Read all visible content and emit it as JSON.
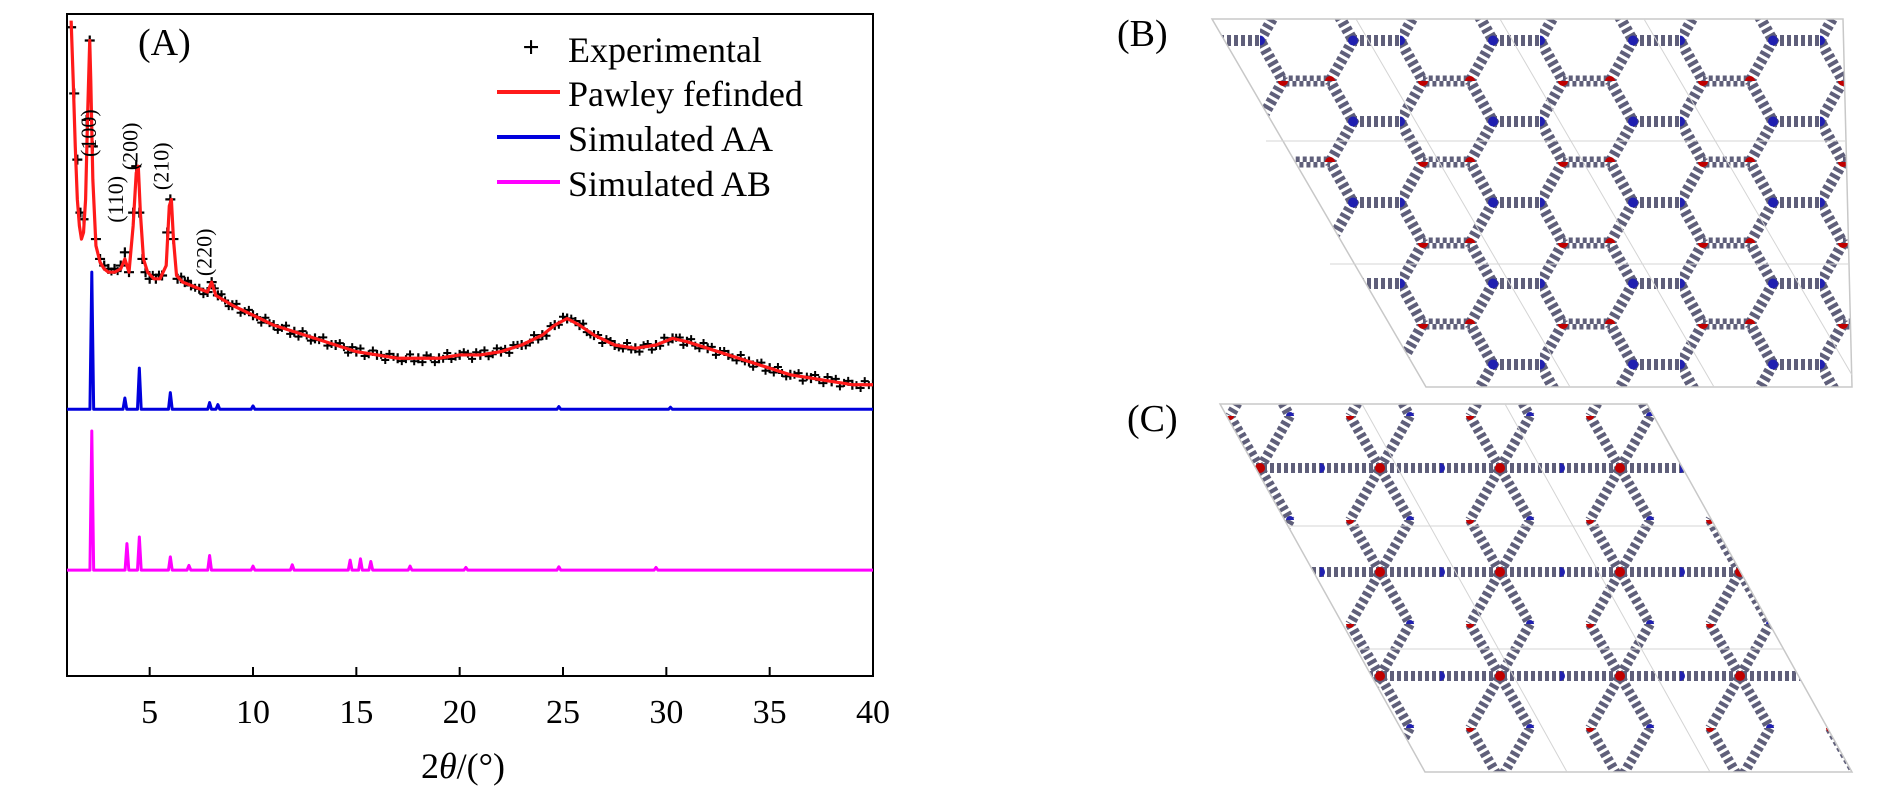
{
  "panels": {
    "a_label": "(A)",
    "b_label": "(B)",
    "c_label": "(C)"
  },
  "chart_data": {
    "type": "line",
    "title": "",
    "xlabel_prefix": "2",
    "xlabel_theta": "θ",
    "xlabel_suffix": "/(°)",
    "ylabel": "",
    "xlim": [
      1,
      40
    ],
    "ylim": [
      0,
      100
    ],
    "xticks": [
      5,
      10,
      15,
      20,
      25,
      30,
      35,
      40
    ],
    "xtick_labels": [
      "5",
      "10",
      "15",
      "20",
      "25",
      "30",
      "35",
      "40"
    ],
    "legend": [
      {
        "label": "Experimental",
        "marker": "+",
        "color": "#000000"
      },
      {
        "label": "Pawley fefinded",
        "color": "#ff1a1a"
      },
      {
        "label": "Simulated AA",
        "color": "#0000dd"
      },
      {
        "label": "Simulated AB",
        "color": "#ff00ff"
      }
    ],
    "peak_labels": [
      {
        "text": "(100)",
        "x": 2.4,
        "y": 82
      },
      {
        "text": "(110)",
        "x": 3.7,
        "y": 72
      },
      {
        "text": "(200)",
        "x": 4.4,
        "y": 80
      },
      {
        "text": "(210)",
        "x": 5.9,
        "y": 77
      },
      {
        "text": "(220)",
        "x": 8.0,
        "y": 64
      }
    ],
    "series": [
      {
        "name": "Experimental",
        "type": "scatter",
        "color": "#000000",
        "x": [
          1.2,
          1.35,
          1.5,
          1.65,
          1.8,
          1.95,
          2.1,
          2.25,
          2.4,
          2.6,
          2.8,
          3.0,
          3.3,
          3.6,
          3.8,
          4.0,
          4.2,
          4.35,
          4.5,
          4.65,
          4.8,
          5.0,
          5.3,
          5.6,
          5.85,
          6.0,
          6.15,
          6.35,
          6.7,
          7.0,
          7.4,
          7.8,
          8.0,
          8.3,
          9,
          10,
          11,
          12,
          13,
          14,
          15,
          16,
          17,
          18,
          19,
          20,
          21,
          22,
          23,
          24,
          24.6,
          25.2,
          25.8,
          26.5,
          27.5,
          28.5,
          29.5,
          30.3,
          31.0,
          32,
          33,
          34,
          35,
          36,
          37,
          38,
          39,
          40
        ],
        "y": [
          98,
          88,
          78,
          70,
          69,
          84,
          96,
          80,
          66,
          63,
          62,
          61.5,
          61.5,
          62,
          64,
          61,
          70,
          77,
          70,
          63,
          61,
          60,
          60,
          60.5,
          67,
          72,
          66,
          60,
          59.5,
          59,
          58.5,
          58,
          59.5,
          57.5,
          56,
          54.5,
          53,
          52,
          51,
          50,
          49,
          48.5,
          48,
          48,
          48,
          48.5,
          48.5,
          49,
          50,
          51.5,
          53,
          54,
          53,
          51.5,
          50,
          49.5,
          50,
          51,
          50.5,
          49.5,
          48.5,
          47.5,
          46.5,
          45.5,
          45,
          44.5,
          44,
          44
        ]
      },
      {
        "name": "Pawley fefinded",
        "type": "line",
        "color": "#ff1a1a",
        "x": [
          1.2,
          1.3,
          1.4,
          1.5,
          1.6,
          1.7,
          1.8,
          1.9,
          2.0,
          2.1,
          2.15,
          2.25,
          2.4,
          2.6,
          2.8,
          3.0,
          3.3,
          3.6,
          3.8,
          4.0,
          4.2,
          4.35,
          4.45,
          4.55,
          4.7,
          4.9,
          5.2,
          5.5,
          5.8,
          5.95,
          6.05,
          6.15,
          6.3,
          6.6,
          7.0,
          7.4,
          7.8,
          8.0,
          8.2,
          9,
          10,
          11,
          12,
          13,
          14,
          15,
          16,
          17,
          18,
          19,
          20,
          21,
          22,
          23,
          24,
          24.6,
          25.2,
          25.8,
          26.5,
          27.5,
          28.5,
          29.5,
          30.3,
          31.0,
          32,
          33,
          34,
          35,
          36,
          37,
          38,
          39,
          40
        ],
        "y": [
          99,
          90,
          80,
          72,
          68,
          66,
          67,
          72,
          85,
          96,
          90,
          75,
          65,
          62.5,
          61.5,
          61,
          61,
          61.5,
          63,
          61,
          68,
          76,
          77,
          70,
          63,
          61,
          60,
          60,
          62,
          71,
          72,
          66,
          60.5,
          59.5,
          59,
          58.5,
          58,
          59.5,
          57.5,
          56,
          54.5,
          53,
          52,
          51,
          50,
          49,
          48.5,
          48,
          48,
          48,
          48.5,
          48.5,
          49,
          50,
          51.5,
          53,
          54,
          53,
          51.5,
          50,
          49.5,
          50,
          51,
          50.5,
          49.5,
          48.5,
          47.5,
          46.5,
          45.5,
          45,
          44.5,
          44,
          44
        ]
      },
      {
        "name": "Simulated AA",
        "type": "line",
        "color": "#0000dd",
        "baseline": 40.3,
        "peaks": [
          {
            "x": 2.2,
            "y": 61
          },
          {
            "x": 3.8,
            "y": 42
          },
          {
            "x": 4.5,
            "y": 46.5
          },
          {
            "x": 6.0,
            "y": 42.8
          },
          {
            "x": 7.9,
            "y": 41.3
          },
          {
            "x": 8.3,
            "y": 41
          },
          {
            "x": 10.0,
            "y": 40.8
          },
          {
            "x": 24.8,
            "y": 40.7
          },
          {
            "x": 30.2,
            "y": 40.6
          }
        ]
      },
      {
        "name": "Simulated AB",
        "type": "line",
        "color": "#ff00ff",
        "baseline": 16,
        "peaks": [
          {
            "x": 2.2,
            "y": 37
          },
          {
            "x": 3.9,
            "y": 20
          },
          {
            "x": 4.5,
            "y": 21
          },
          {
            "x": 6.0,
            "y": 18
          },
          {
            "x": 6.9,
            "y": 16.7
          },
          {
            "x": 7.9,
            "y": 18.2
          },
          {
            "x": 10.0,
            "y": 16.6
          },
          {
            "x": 11.9,
            "y": 16.8
          },
          {
            "x": 14.7,
            "y": 17.5
          },
          {
            "x": 15.2,
            "y": 17.7
          },
          {
            "x": 15.7,
            "y": 17.3
          },
          {
            "x": 17.6,
            "y": 16.6
          },
          {
            "x": 20.3,
            "y": 16.4
          },
          {
            "x": 24.8,
            "y": 16.5
          },
          {
            "x": 29.5,
            "y": 16.4
          }
        ]
      }
    ]
  }
}
